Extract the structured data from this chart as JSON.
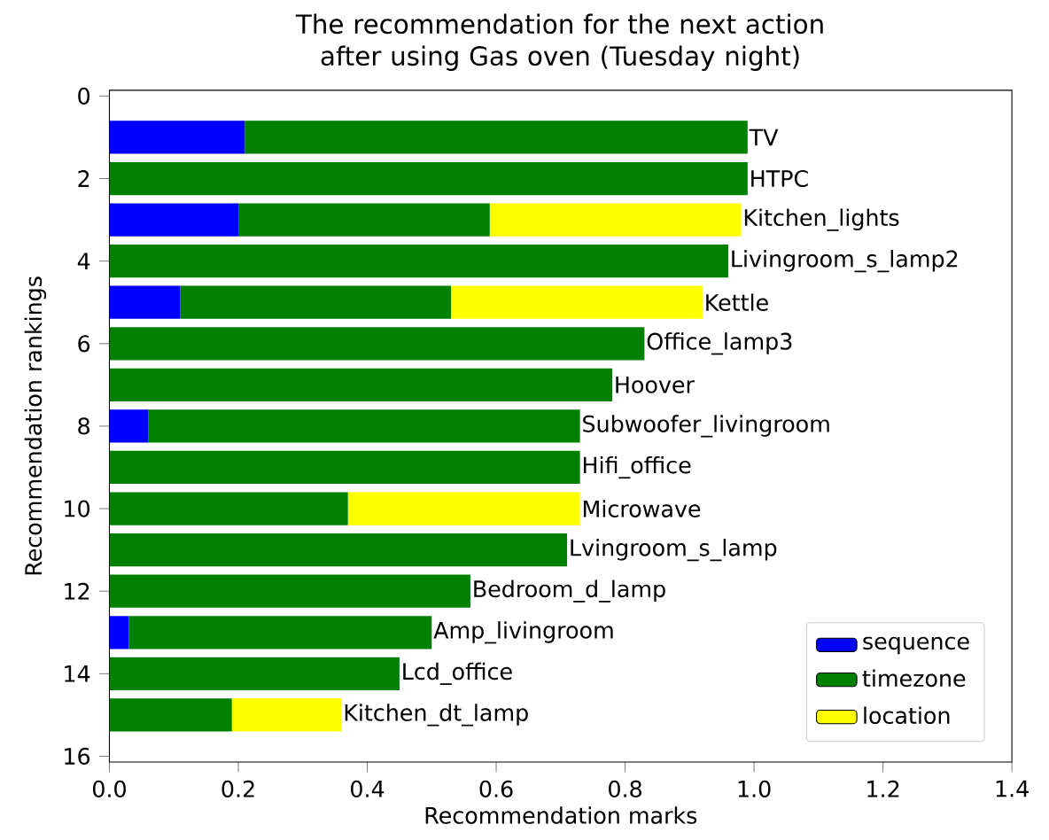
{
  "chart_data": {
    "type": "bar",
    "orientation": "horizontal",
    "stacked": true,
    "title": "The recommendation for the next action after using Gas oven (Tuesday night)",
    "xlabel": "Recommendation marks",
    "ylabel": "Recommendation rankings",
    "x": [
      1,
      2,
      3,
      4,
      5,
      6,
      7,
      8,
      9,
      10,
      11,
      12,
      13,
      14,
      15
    ],
    "series": [
      {
        "name": "sequence",
        "color": "#0000ff",
        "values": [
          0.21,
          0,
          0.2,
          0,
          0.11,
          0,
          0,
          0.06,
          0,
          0,
          0,
          0,
          0.03,
          0,
          0
        ]
      },
      {
        "name": "timezone",
        "color": "#008000",
        "values": [
          0.78,
          0.99,
          0.39,
          0.96,
          0.42,
          0.83,
          0.78,
          0.67,
          0.73,
          0.37,
          0.71,
          0.56,
          0.47,
          0.45,
          0.19
        ]
      },
      {
        "name": "location",
        "color": "#ffff00",
        "values": [
          0,
          0,
          0.39,
          0,
          0.39,
          0,
          0,
          0,
          0,
          0.36,
          0,
          0,
          0,
          0,
          0.17
        ]
      }
    ],
    "annotations": [
      {
        "text": "TV",
        "x": 0.99,
        "y": 1
      },
      {
        "text": "HTPC",
        "x": 0.99,
        "y": 2
      },
      {
        "text": "Kitchen_lights",
        "x": 0.98,
        "y": 3
      },
      {
        "text": "Livingroom_s_lamp2",
        "x": 0.96,
        "y": 4
      },
      {
        "text": "Kettle",
        "x": 0.92,
        "y": 5
      },
      {
        "text": "Office_lamp3",
        "x": 0.83,
        "y": 6
      },
      {
        "text": "Hoover",
        "x": 0.78,
        "y": 7
      },
      {
        "text": "Subwoofer_livingroom",
        "x": 0.73,
        "y": 8
      },
      {
        "text": "Hifi_office",
        "x": 0.73,
        "y": 9
      },
      {
        "text": "Microwave",
        "x": 0.73,
        "y": 10
      },
      {
        "text": "Lvingroom_s_lamp",
        "x": 0.71,
        "y": 11
      },
      {
        "text": "Bedroom_d_lamp",
        "x": 0.56,
        "y": 12
      },
      {
        "text": "Amp_livingroom",
        "x": 0.5,
        "y": 13
      },
      {
        "text": "Lcd_office",
        "x": 0.45,
        "y": 14
      },
      {
        "text": "Kitchen_dt_lamp",
        "x": 0.36,
        "y": 15
      }
    ],
    "xlim": [
      0,
      1.4
    ],
    "xticks": [
      {
        "value": 0,
        "label": "0.0"
      },
      0.2,
      0.4,
      0.6,
      0.8,
      {
        "value": 1,
        "label": "1.0"
      },
      1.2,
      1.4
    ],
    "ylim": [
      16.14,
      -0.14
    ],
    "yticks": [
      0,
      2,
      4,
      6,
      8,
      10,
      12,
      14,
      16
    ],
    "legend": "bottom right"
  }
}
